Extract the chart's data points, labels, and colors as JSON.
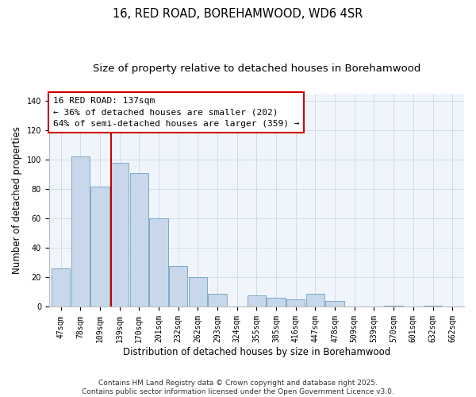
{
  "title": "16, RED ROAD, BOREHAMWOOD, WD6 4SR",
  "subtitle": "Size of property relative to detached houses in Borehamwood",
  "xlabel": "Distribution of detached houses by size in Borehamwood",
  "ylabel": "Number of detached properties",
  "categories": [
    "47sqm",
    "78sqm",
    "109sqm",
    "139sqm",
    "170sqm",
    "201sqm",
    "232sqm",
    "262sqm",
    "293sqm",
    "324sqm",
    "355sqm",
    "385sqm",
    "416sqm",
    "447sqm",
    "478sqm",
    "509sqm",
    "539sqm",
    "570sqm",
    "601sqm",
    "632sqm",
    "662sqm"
  ],
  "values": [
    26,
    102,
    82,
    98,
    91,
    60,
    28,
    20,
    9,
    0,
    8,
    6,
    5,
    9,
    4,
    0,
    0,
    1,
    0,
    1,
    0
  ],
  "bar_color": "#c8d8ea",
  "bar_edge_color": "#7aaac8",
  "vline_color": "#cc0000",
  "vline_label": "16 RED ROAD: 137sqm",
  "annotation_line1": "← 36% of detached houses are smaller (202)",
  "annotation_line2": "64% of semi-detached houses are larger (359) →",
  "annotation_box_color": "#ffffff",
  "annotation_box_edge": "#cc0000",
  "ylim": [
    0,
    145
  ],
  "yticks": [
    0,
    20,
    40,
    60,
    80,
    100,
    120,
    140
  ],
  "footnote1": "Contains HM Land Registry data © Crown copyright and database right 2025.",
  "footnote2": "Contains public sector information licensed under the Open Government Licence v3.0.",
  "title_fontsize": 10.5,
  "subtitle_fontsize": 9.5,
  "axis_label_fontsize": 8.5,
  "tick_fontsize": 7,
  "annotation_fontsize": 8,
  "footnote_fontsize": 6.5,
  "grid_color": "#d0dde8"
}
